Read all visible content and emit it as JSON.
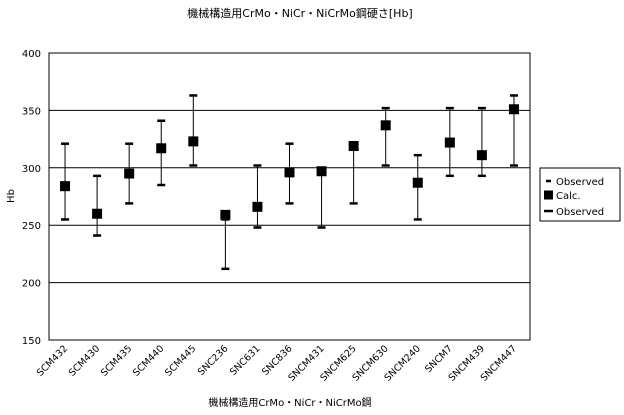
{
  "chart_data": {
    "type": "scatter",
    "title": "機械構造用CrMo・NiCr・NiCrMo鋼硬さ[Hb]",
    "xlabel": "機械構造用CrMo・NiCr・NiCrMo鋼",
    "ylabel": "Hb",
    "ylim": [
      150,
      400
    ],
    "yticks": [
      "150",
      "200",
      "250",
      "300",
      "350",
      "400"
    ],
    "grid": "horizontal",
    "legend_position": "right",
    "categories": [
      "SCM432",
      "SCM430",
      "SCM435",
      "SCM440",
      "SCM445",
      "SNC236",
      "SNC631",
      "SNC836",
      "SNCM431",
      "SNCM625",
      "SNCM630",
      "SNCM240",
      "SNCM7",
      "SNCM439",
      "SNCM447"
    ],
    "series": [
      {
        "name": "Observed",
        "marker": "dash-small",
        "values": [
          255,
          241,
          269,
          285,
          302,
          212,
          248,
          269,
          248,
          269,
          302,
          255,
          293,
          293,
          302
        ]
      },
      {
        "name": "Calc.",
        "marker": "square",
        "values": [
          284,
          260,
          295,
          317,
          323,
          259,
          266,
          296,
          297,
          319,
          337,
          287,
          322,
          311,
          351
        ]
      },
      {
        "name": "Observed",
        "marker": "dash-wide",
        "values": [
          321,
          293,
          321,
          341,
          363,
          255,
          302,
          321,
          300,
          321,
          352,
          311,
          352,
          352,
          363
        ]
      }
    ]
  }
}
